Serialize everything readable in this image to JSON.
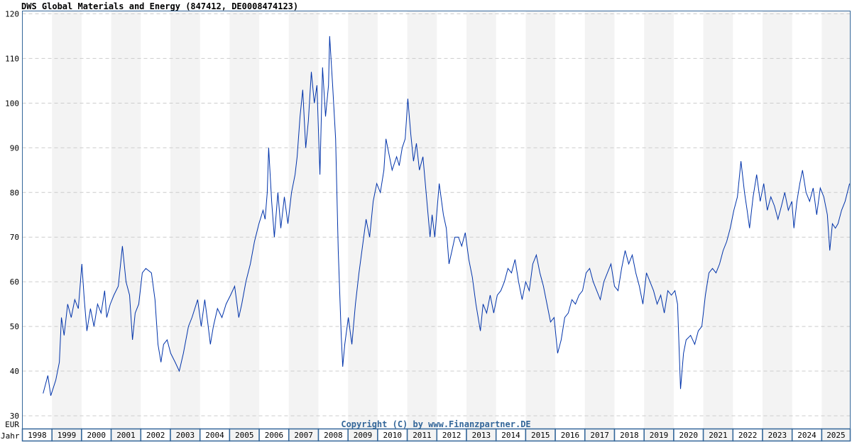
{
  "chart_data": {
    "type": "line",
    "title": "DWS Global Materials and Energy (847412, DE0008474123)",
    "ylabel": "EUR",
    "xlabel": "Jahr",
    "ylim": [
      30,
      120
    ],
    "yticks": [
      30,
      40,
      50,
      60,
      70,
      80,
      90,
      100,
      110,
      120
    ],
    "xlim": [
      1998,
      2026
    ],
    "years": [
      "1998",
      "1999",
      "2000",
      "2001",
      "2002",
      "2003",
      "2004",
      "2005",
      "2006",
      "2007",
      "2008",
      "2009",
      "2010",
      "2011",
      "2012",
      "2013",
      "2014",
      "2015",
      "2016",
      "2017",
      "2018",
      "2019",
      "2020",
      "2021",
      "2022",
      "2023",
      "2024",
      "2025"
    ],
    "grid": true,
    "copyright": "Copyright (C) by www.Finanzpartner.DE",
    "line_color": "#0033aa",
    "series": [
      {
        "name": "DWS Global Materials and Energy",
        "points": [
          [
            1998.7,
            35
          ],
          [
            1998.86,
            39
          ],
          [
            1998.96,
            34.5
          ],
          [
            1999.13,
            38
          ],
          [
            1999.25,
            42
          ],
          [
            1999.32,
            52
          ],
          [
            1999.41,
            48
          ],
          [
            1999.53,
            55
          ],
          [
            1999.65,
            52
          ],
          [
            1999.77,
            56
          ],
          [
            1999.89,
            54
          ],
          [
            2000.01,
            64
          ],
          [
            2000.09,
            56
          ],
          [
            2000.18,
            49
          ],
          [
            2000.3,
            54
          ],
          [
            2000.42,
            50
          ],
          [
            2000.54,
            55
          ],
          [
            2000.66,
            53
          ],
          [
            2000.78,
            58
          ],
          [
            2000.85,
            52
          ],
          [
            2000.97,
            55
          ],
          [
            2001.09,
            57
          ],
          [
            2001.24,
            59
          ],
          [
            2001.38,
            68
          ],
          [
            2001.5,
            60
          ],
          [
            2001.62,
            57
          ],
          [
            2001.72,
            47
          ],
          [
            2001.81,
            53
          ],
          [
            2001.93,
            55
          ],
          [
            2002.05,
            62
          ],
          [
            2002.17,
            63
          ],
          [
            2002.36,
            62
          ],
          [
            2002.48,
            56
          ],
          [
            2002.58,
            46
          ],
          [
            2002.68,
            42
          ],
          [
            2002.77,
            46
          ],
          [
            2002.89,
            47
          ],
          [
            2003.01,
            44
          ],
          [
            2003.16,
            42
          ],
          [
            2003.3,
            40
          ],
          [
            2003.44,
            44
          ],
          [
            2003.61,
            50
          ],
          [
            2003.73,
            52
          ],
          [
            2003.92,
            56
          ],
          [
            2004.04,
            50
          ],
          [
            2004.16,
            56
          ],
          [
            2004.26,
            51
          ],
          [
            2004.35,
            46
          ],
          [
            2004.45,
            50
          ],
          [
            2004.59,
            54
          ],
          [
            2004.74,
            52
          ],
          [
            2004.88,
            55
          ],
          [
            2005.03,
            57
          ],
          [
            2005.17,
            59
          ],
          [
            2005.31,
            52
          ],
          [
            2005.41,
            55
          ],
          [
            2005.55,
            60
          ],
          [
            2005.7,
            64
          ],
          [
            2005.84,
            69
          ],
          [
            2005.99,
            73
          ],
          [
            2006.13,
            76
          ],
          [
            2006.2,
            74
          ],
          [
            2006.27,
            80
          ],
          [
            2006.32,
            90
          ],
          [
            2006.42,
            78
          ],
          [
            2006.51,
            70
          ],
          [
            2006.63,
            80
          ],
          [
            2006.73,
            72
          ],
          [
            2006.85,
            79
          ],
          [
            2006.97,
            73
          ],
          [
            2007.09,
            80
          ],
          [
            2007.21,
            84
          ],
          [
            2007.28,
            88
          ],
          [
            2007.38,
            97
          ],
          [
            2007.47,
            103
          ],
          [
            2007.57,
            90
          ],
          [
            2007.66,
            96
          ],
          [
            2007.76,
            107
          ],
          [
            2007.86,
            100
          ],
          [
            2007.95,
            104
          ],
          [
            2008.05,
            84
          ],
          [
            2008.14,
            108
          ],
          [
            2008.24,
            97
          ],
          [
            2008.34,
            104
          ],
          [
            2008.38,
            115
          ],
          [
            2008.48,
            104
          ],
          [
            2008.58,
            92
          ],
          [
            2008.67,
            67
          ],
          [
            2008.77,
            48
          ],
          [
            2008.82,
            41
          ],
          [
            2008.89,
            46
          ],
          [
            2009.01,
            52
          ],
          [
            2009.13,
            46
          ],
          [
            2009.25,
            55
          ],
          [
            2009.37,
            62
          ],
          [
            2009.49,
            68
          ],
          [
            2009.61,
            74
          ],
          [
            2009.73,
            70
          ],
          [
            2009.85,
            78
          ],
          [
            2009.97,
            82
          ],
          [
            2010.09,
            80
          ],
          [
            2010.21,
            85
          ],
          [
            2010.28,
            92
          ],
          [
            2010.4,
            88
          ],
          [
            2010.49,
            85
          ],
          [
            2010.64,
            88
          ],
          [
            2010.73,
            86
          ],
          [
            2010.83,
            90
          ],
          [
            2010.93,
            92
          ],
          [
            2011.02,
            101
          ],
          [
            2011.12,
            93
          ],
          [
            2011.21,
            87
          ],
          [
            2011.31,
            91
          ],
          [
            2011.41,
            85
          ],
          [
            2011.53,
            88
          ],
          [
            2011.65,
            79
          ],
          [
            2011.77,
            70
          ],
          [
            2011.84,
            75
          ],
          [
            2011.93,
            70
          ],
          [
            2012.08,
            82
          ],
          [
            2012.22,
            75
          ],
          [
            2012.32,
            72
          ],
          [
            2012.41,
            64
          ],
          [
            2012.51,
            67
          ],
          [
            2012.61,
            70
          ],
          [
            2012.73,
            70
          ],
          [
            2012.84,
            68
          ],
          [
            2012.96,
            71
          ],
          [
            2013.08,
            65
          ],
          [
            2013.2,
            61
          ],
          [
            2013.32,
            55
          ],
          [
            2013.47,
            49
          ],
          [
            2013.56,
            55
          ],
          [
            2013.68,
            53
          ],
          [
            2013.8,
            57
          ],
          [
            2013.92,
            53
          ],
          [
            2014.04,
            57
          ],
          [
            2014.16,
            58
          ],
          [
            2014.28,
            60
          ],
          [
            2014.4,
            63
          ],
          [
            2014.52,
            62
          ],
          [
            2014.64,
            65
          ],
          [
            2014.76,
            60
          ],
          [
            2014.88,
            56
          ],
          [
            2015.0,
            60
          ],
          [
            2015.12,
            58
          ],
          [
            2015.24,
            64
          ],
          [
            2015.36,
            66
          ],
          [
            2015.48,
            62
          ],
          [
            2015.6,
            59
          ],
          [
            2015.72,
            55
          ],
          [
            2015.84,
            51
          ],
          [
            2015.96,
            52
          ],
          [
            2016.08,
            44
          ],
          [
            2016.2,
            47
          ],
          [
            2016.32,
            52
          ],
          [
            2016.44,
            53
          ],
          [
            2016.56,
            56
          ],
          [
            2016.68,
            55
          ],
          [
            2016.8,
            57
          ],
          [
            2016.92,
            58
          ],
          [
            2017.04,
            62
          ],
          [
            2017.16,
            63
          ],
          [
            2017.28,
            60
          ],
          [
            2017.4,
            58
          ],
          [
            2017.52,
            56
          ],
          [
            2017.64,
            60
          ],
          [
            2017.76,
            62
          ],
          [
            2017.88,
            64
          ],
          [
            2018.0,
            59
          ],
          [
            2018.12,
            58
          ],
          [
            2018.24,
            63
          ],
          [
            2018.36,
            67
          ],
          [
            2018.48,
            64
          ],
          [
            2018.6,
            66
          ],
          [
            2018.72,
            62
          ],
          [
            2018.84,
            59
          ],
          [
            2018.96,
            55
          ],
          [
            2019.08,
            62
          ],
          [
            2019.2,
            60
          ],
          [
            2019.32,
            58
          ],
          [
            2019.44,
            55
          ],
          [
            2019.56,
            57
          ],
          [
            2019.68,
            53
          ],
          [
            2019.8,
            58
          ],
          [
            2019.92,
            57
          ],
          [
            2020.04,
            58
          ],
          [
            2020.13,
            55
          ],
          [
            2020.23,
            36
          ],
          [
            2020.33,
            44
          ],
          [
            2020.42,
            47
          ],
          [
            2020.57,
            48
          ],
          [
            2020.71,
            46
          ],
          [
            2020.83,
            49
          ],
          [
            2020.95,
            50
          ],
          [
            2021.07,
            57
          ],
          [
            2021.19,
            62
          ],
          [
            2021.31,
            63
          ],
          [
            2021.43,
            62
          ],
          [
            2021.55,
            64
          ],
          [
            2021.67,
            67
          ],
          [
            2021.79,
            69
          ],
          [
            2021.91,
            72
          ],
          [
            2022.03,
            76
          ],
          [
            2022.15,
            79
          ],
          [
            2022.27,
            87
          ],
          [
            2022.39,
            80
          ],
          [
            2022.48,
            76
          ],
          [
            2022.56,
            72
          ],
          [
            2022.68,
            79
          ],
          [
            2022.8,
            84
          ],
          [
            2022.92,
            78
          ],
          [
            2023.04,
            82
          ],
          [
            2023.16,
            76
          ],
          [
            2023.28,
            79
          ],
          [
            2023.4,
            77
          ],
          [
            2023.52,
            74
          ],
          [
            2023.64,
            77
          ],
          [
            2023.75,
            80
          ],
          [
            2023.87,
            76
          ],
          [
            2023.99,
            78
          ],
          [
            2024.06,
            72
          ],
          [
            2024.16,
            78
          ],
          [
            2024.26,
            82
          ],
          [
            2024.35,
            85
          ],
          [
            2024.47,
            80
          ],
          [
            2024.59,
            78
          ],
          [
            2024.71,
            81
          ],
          [
            2024.83,
            75
          ],
          [
            2024.95,
            81
          ],
          [
            2025.07,
            79
          ],
          [
            2025.19,
            75
          ],
          [
            2025.27,
            67
          ],
          [
            2025.36,
            73
          ],
          [
            2025.46,
            72
          ],
          [
            2025.55,
            73
          ],
          [
            2025.67,
            76
          ],
          [
            2025.79,
            78
          ],
          [
            2025.94,
            82
          ]
        ]
      }
    ]
  }
}
